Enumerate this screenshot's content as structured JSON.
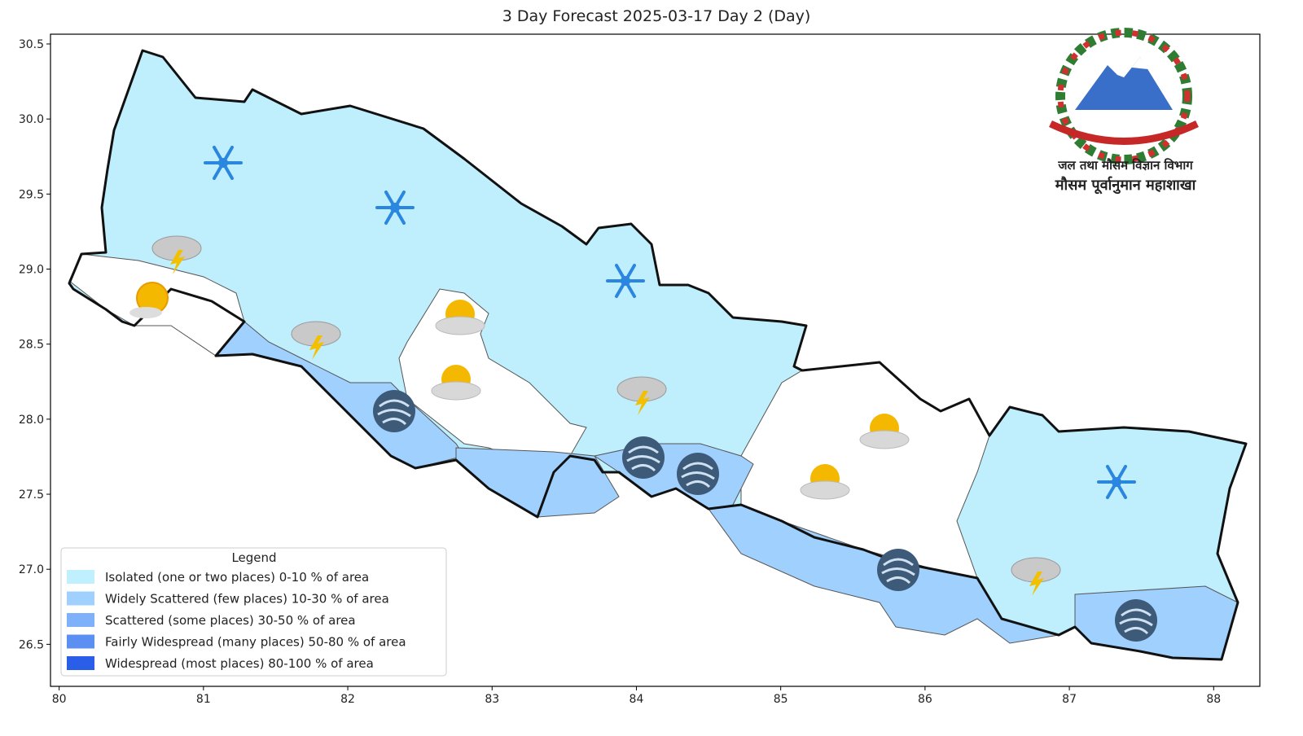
{
  "map": {
    "title": "3 Day Forecast 2025-03-17 Day 2 (Day)",
    "xlim": [
      79.94,
      88.32
    ],
    "ylim": [
      26.22,
      30.565
    ],
    "xticks": [
      80,
      81,
      82,
      83,
      84,
      85,
      86,
      87,
      88
    ],
    "yticks": [
      {
        "value": 26.5,
        "label": "26.5"
      },
      {
        "value": 27,
        "label": "27.0"
      },
      27.5,
      {
        "value": 28,
        "label": "28.0"
      },
      28.5,
      {
        "value": 29,
        "label": "29.0"
      },
      29.5,
      {
        "value": 30,
        "label": "30.0"
      },
      30.5
    ],
    "legend": {
      "title": "Legend",
      "items": [
        {
          "label": "Isolated (one or two places)  0-10 % of area",
          "color": "#c0effd"
        },
        {
          "label": "Widely Scattered (few places) 10-30 % of area",
          "color": "#a0d0fe"
        },
        {
          "label": "Scattered (some places) 30-50  % of area",
          "color": "#7fb1fb"
        },
        {
          "label": "Fairly Widespread (many places) 50-80 % of area",
          "color": "#5b8ff2"
        },
        {
          "label": "Widespread (most places) 80-100 % of area",
          "color": "#2a5ee8"
        }
      ]
    },
    "logo": {
      "line1": "जल तथा मौसम विज्ञान विभाग",
      "line2": "मौसम पूर्वानुमान महाशाखा"
    }
  }
}
